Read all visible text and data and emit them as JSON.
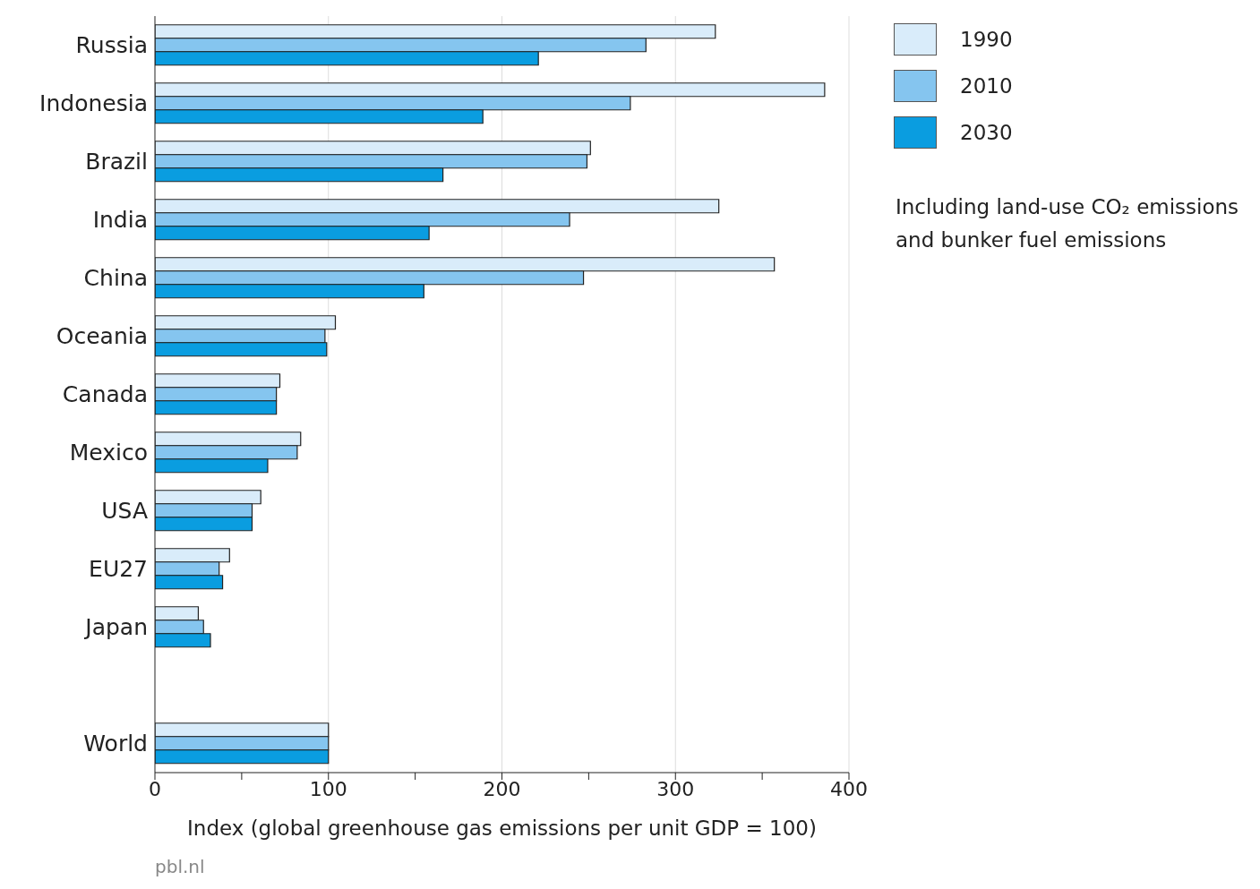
{
  "chart_data": {
    "type": "bar",
    "orientation": "horizontal",
    "xlabel": "Index (global greenhouse gas emissions per unit GDP = 100)",
    "categories": [
      "Russia",
      "Indonesia",
      "Brazil",
      "India",
      "China",
      "Oceania",
      "Canada",
      "Mexico",
      "USA",
      "EU27",
      "Japan",
      null,
      "World"
    ],
    "series": [
      {
        "name": "1990",
        "color": "#d9ecfa",
        "values": [
          323,
          386,
          251,
          325,
          357,
          104,
          72,
          84,
          61,
          43,
          25,
          null,
          100
        ]
      },
      {
        "name": "2010",
        "color": "#85c5ef",
        "values": [
          283,
          274,
          249,
          239,
          247,
          98,
          70,
          82,
          56,
          37,
          28,
          null,
          100
        ]
      },
      {
        "name": "2030",
        "color": "#0a9de0",
        "values": [
          221,
          189,
          166,
          158,
          155,
          99,
          70,
          65,
          56,
          39,
          32,
          null,
          100
        ]
      }
    ],
    "xlim": [
      0,
      400
    ],
    "xticks": [
      0,
      {
        "value": 50,
        "label": null
      },
      100,
      {
        "value": 150,
        "label": null
      },
      200,
      {
        "value": 250,
        "label": null
      },
      300,
      {
        "value": 350,
        "label": null
      },
      400
    ],
    "grid": "x",
    "legend": "right",
    "annotations": [
      "Including land-use CO₂ emissions and bunker fuel emissions",
      "pbl.nl"
    ]
  }
}
